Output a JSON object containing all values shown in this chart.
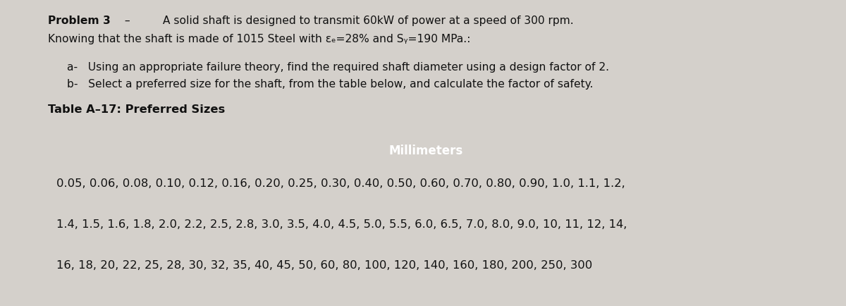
{
  "title_bold": "Problem 3",
  "line1_dash": " –",
  "line1_rest": "         A solid shaft is designed to transmit 60kW of power at a speed of 300 rpm.",
  "line2": "Knowing that the shaft is made of 1015 Steel with εₑ=28% and Sᵧ=190 MPa.:",
  "item_a": "a-   Using an appropriate failure theory, find the required shaft diameter using a design factor of 2.",
  "item_b": "b-   Select a preferred size for the shaft, from the table below, and calculate the factor of safety.",
  "table_title": "Table A–17: Preferred Sizes",
  "header": "Millimeters",
  "row1": "0.05, 0.06, 0.08, 0.10, 0.12, 0.16, 0.20, 0.25, 0.30, 0.40, 0.50, 0.60, 0.70, 0.80, 0.90, 1.0, 1.1, 1.2,",
  "row2": "1.4, 1.5, 1.6, 1.8, 2.0, 2.2, 2.5, 2.8, 3.0, 3.5, 4.0, 4.5, 5.0, 5.5, 6.0, 6.5, 7.0, 8.0, 9.0, 10, 11, 12, 14,",
  "row3": "16, 18, 20, 22, 25, 28, 30, 32, 35, 40, 45, 50, 60, 80, 100, 120, 140, 160, 180, 200, 250, 300",
  "bg_color": "#d4d0cb",
  "header_bg": "#555555",
  "header_text_color": "#ffffff",
  "table_bg": "#dcdcdc",
  "body_text_color": "#111111",
  "font_size_main": 11.2,
  "font_size_header": 12.0,
  "font_size_table": 11.8,
  "font_size_title": 11.2
}
